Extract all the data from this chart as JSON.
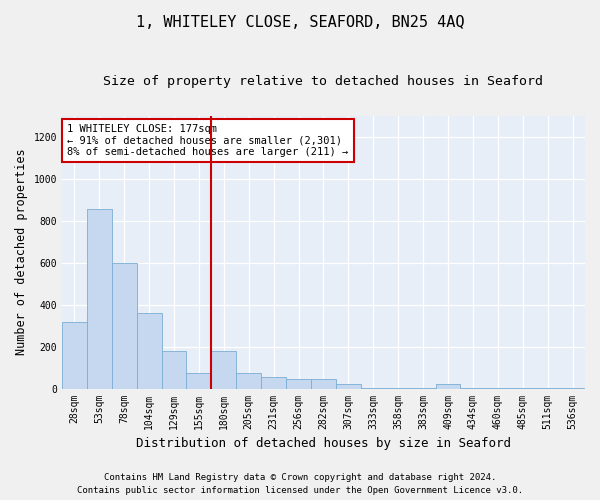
{
  "title": "1, WHITELEY CLOSE, SEAFORD, BN25 4AQ",
  "subtitle": "Size of property relative to detached houses in Seaford",
  "xlabel": "Distribution of detached houses by size in Seaford",
  "ylabel": "Number of detached properties",
  "categories": [
    "28sqm",
    "53sqm",
    "78sqm",
    "104sqm",
    "129sqm",
    "155sqm",
    "180sqm",
    "205sqm",
    "231sqm",
    "256sqm",
    "282sqm",
    "307sqm",
    "333sqm",
    "358sqm",
    "383sqm",
    "409sqm",
    "434sqm",
    "460sqm",
    "485sqm",
    "511sqm",
    "536sqm"
  ],
  "values": [
    315,
    855,
    600,
    360,
    180,
    75,
    180,
    75,
    55,
    45,
    45,
    20,
    5,
    5,
    5,
    20,
    5,
    5,
    5,
    5,
    5
  ],
  "bar_color": "#c5d8f0",
  "bar_edge_color": "#7aadd4",
  "vline_x": 6,
  "vline_color": "#cc0000",
  "annotation_text": "1 WHITELEY CLOSE: 177sqm\n← 91% of detached houses are smaller (2,301)\n8% of semi-detached houses are larger (211) →",
  "annotation_box_color": "white",
  "annotation_box_edge": "#cc0000",
  "footnote1": "Contains HM Land Registry data © Crown copyright and database right 2024.",
  "footnote2": "Contains public sector information licensed under the Open Government Licence v3.0.",
  "ylim": [
    0,
    1300
  ],
  "yticks": [
    0,
    200,
    400,
    600,
    800,
    1000,
    1200
  ],
  "bg_color": "#e8eef8",
  "grid_color": "#ffffff",
  "title_fontsize": 11,
  "subtitle_fontsize": 9.5,
  "xlabel_fontsize": 9,
  "ylabel_fontsize": 8.5,
  "tick_fontsize": 7,
  "annot_fontsize": 7.5,
  "footnote_fontsize": 6.5
}
